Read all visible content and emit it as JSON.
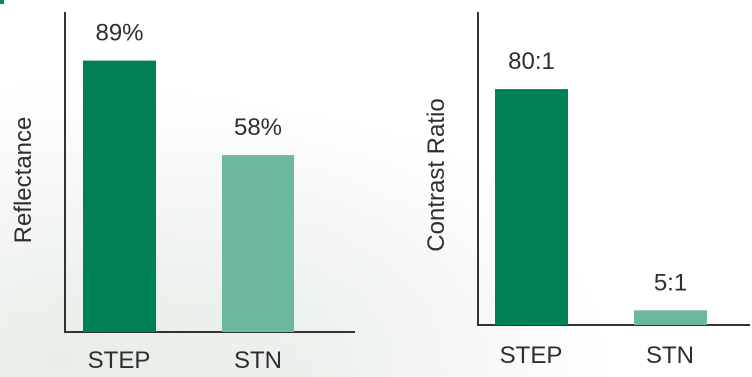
{
  "colors": {
    "primary_bar": "#008055",
    "secondary_bar": "#6bb89c",
    "axis": "#333333",
    "text": "#2f2f2f"
  },
  "chart_data": [
    {
      "type": "bar",
      "ylabel": "Reflectance",
      "categories": [
        "STEP",
        "STN"
      ],
      "values": [
        89,
        58
      ],
      "data_labels": [
        "89%",
        "58%"
      ],
      "unit": "%",
      "ylim": [
        0,
        100
      ],
      "grid": false
    },
    {
      "type": "bar",
      "ylabel": "Contrast Ratio",
      "categories": [
        "STEP",
        "STN"
      ],
      "values": [
        80,
        5
      ],
      "data_labels": [
        "80:1",
        "5:1"
      ],
      "ylim": [
        0,
        98
      ],
      "grid": false
    }
  ]
}
